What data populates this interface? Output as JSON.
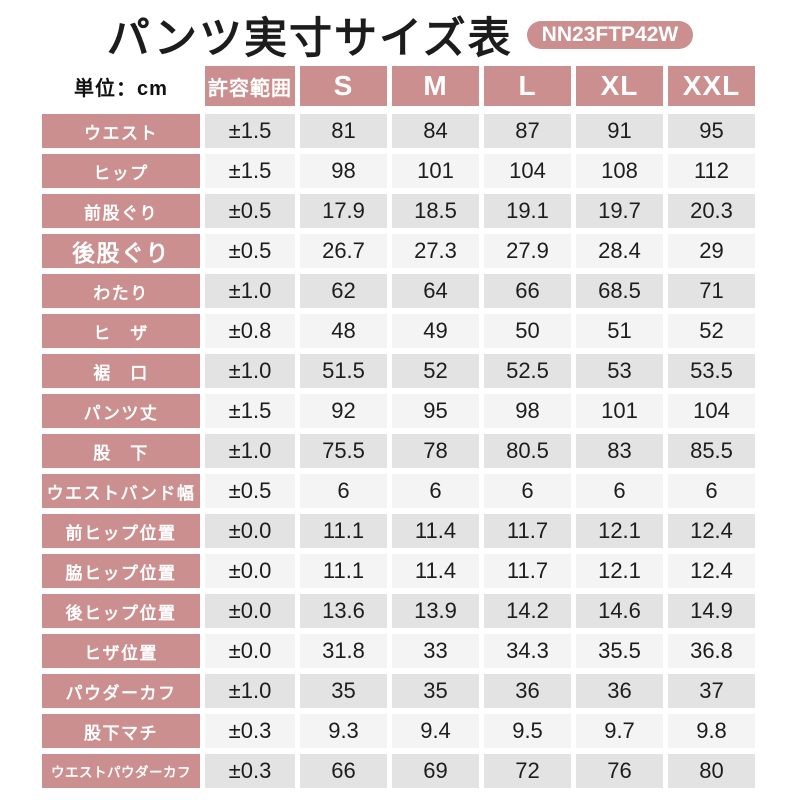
{
  "header": {
    "title": "パンツ実寸サイズ表",
    "product_code": "NN23FTP42W"
  },
  "table": {
    "unit_label": "単位：cm"
  },
  "colors": {
    "accent_pink": "#cc8f8f",
    "row_dark": "#e3e3e3",
    "row_light": "#f4f4f4",
    "header_text": "#ffffff",
    "value_text": "#1d1d1d"
  },
  "chart_data": {
    "type": "table",
    "title": "パンツ実寸サイズ表",
    "unit": "cm",
    "columns": [
      "許容範囲",
      "S",
      "M",
      "L",
      "XL",
      "XXL"
    ],
    "rows": [
      {
        "label": "ウエスト",
        "tolerance": "±1.5",
        "values": [
          "81",
          "84",
          "87",
          "91",
          "95"
        ]
      },
      {
        "label": "ヒップ",
        "tolerance": "±1.5",
        "values": [
          "98",
          "101",
          "104",
          "108",
          "112"
        ]
      },
      {
        "label": "前股ぐり",
        "tolerance": "±0.5",
        "values": [
          "17.9",
          "18.5",
          "19.1",
          "19.7",
          "20.3"
        ]
      },
      {
        "label": "後股ぐり",
        "tolerance": "±0.5",
        "values": [
          "26.7",
          "27.3",
          "27.9",
          "28.4",
          "29"
        ],
        "emphasis": "large"
      },
      {
        "label": "わたり",
        "tolerance": "±1.0",
        "values": [
          "62",
          "64",
          "66",
          "68.5",
          "71"
        ]
      },
      {
        "label": "ヒ　ザ",
        "tolerance": "±0.8",
        "values": [
          "48",
          "49",
          "50",
          "51",
          "52"
        ]
      },
      {
        "label": "裾　口",
        "tolerance": "±1.0",
        "values": [
          "51.5",
          "52",
          "52.5",
          "53",
          "53.5"
        ]
      },
      {
        "label": "パンツ丈",
        "tolerance": "±1.5",
        "values": [
          "92",
          "95",
          "98",
          "101",
          "104"
        ]
      },
      {
        "label": "股　下",
        "tolerance": "±1.0",
        "values": [
          "75.5",
          "78",
          "80.5",
          "83",
          "85.5"
        ]
      },
      {
        "label": "ウエストバンド幅",
        "tolerance": "±0.5",
        "values": [
          "6",
          "6",
          "6",
          "6",
          "6"
        ]
      },
      {
        "label": "前ヒップ位置",
        "tolerance": "±0.0",
        "values": [
          "11.1",
          "11.4",
          "11.7",
          "12.1",
          "12.4"
        ]
      },
      {
        "label": "脇ヒップ位置",
        "tolerance": "±0.0",
        "values": [
          "11.1",
          "11.4",
          "11.7",
          "12.1",
          "12.4"
        ]
      },
      {
        "label": "後ヒップ位置",
        "tolerance": "±0.0",
        "values": [
          "13.6",
          "13.9",
          "14.2",
          "14.6",
          "14.9"
        ]
      },
      {
        "label": "ヒザ位置",
        "tolerance": "±0.0",
        "values": [
          "31.8",
          "33",
          "34.3",
          "35.5",
          "36.8"
        ]
      },
      {
        "label": "パウダーカフ",
        "tolerance": "±1.0",
        "values": [
          "35",
          "35",
          "36",
          "36",
          "37"
        ]
      },
      {
        "label": "股下マチ",
        "tolerance": "±0.3",
        "values": [
          "9.3",
          "9.4",
          "9.5",
          "9.7",
          "9.8"
        ]
      },
      {
        "label": "ウエストパウダーカフ",
        "tolerance": "±0.3",
        "values": [
          "66",
          "69",
          "72",
          "76",
          "80"
        ],
        "emphasis": "small"
      }
    ]
  }
}
